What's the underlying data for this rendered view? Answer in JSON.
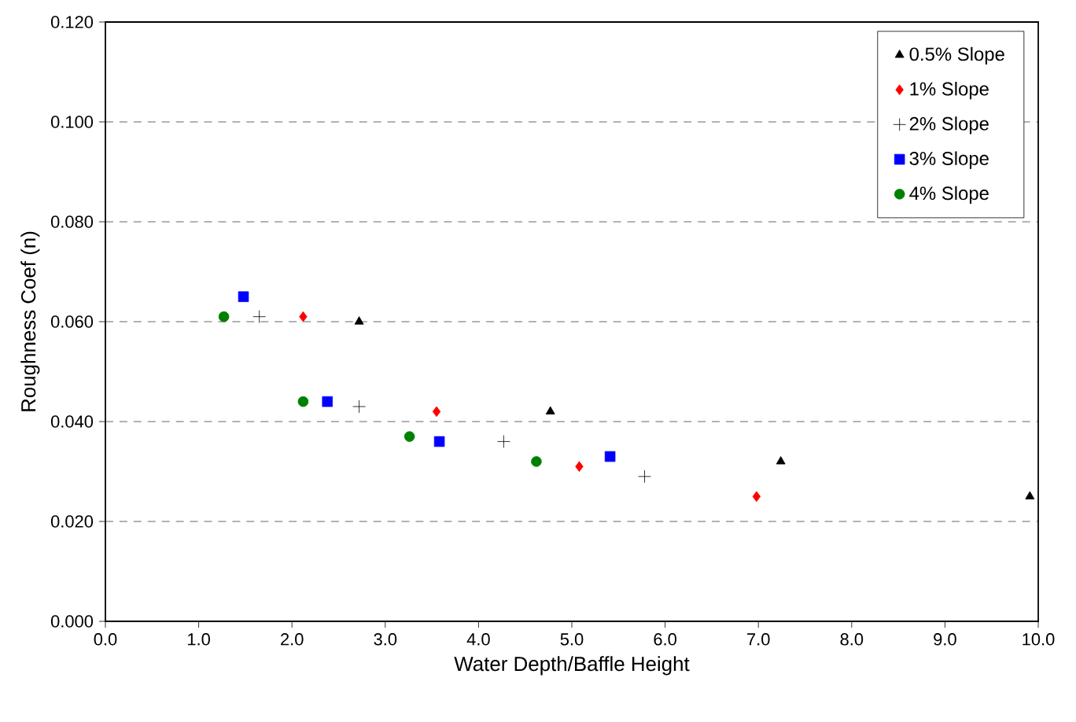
{
  "chart_data": {
    "type": "scatter",
    "xlabel": "Water Depth/Baffle Height",
    "ylabel": "Roughness Coef (n)",
    "xlim": [
      0,
      10
    ],
    "ylim": [
      0,
      0.12
    ],
    "xticks": [
      {
        "value": 0,
        "label": "0.0"
      },
      {
        "value": 1,
        "label": "1.0"
      },
      {
        "value": 2,
        "label": "2.0"
      },
      {
        "value": 3,
        "label": "3.0"
      },
      {
        "value": 4,
        "label": "4.0"
      },
      {
        "value": 5,
        "label": "5.0"
      },
      {
        "value": 6,
        "label": "6.0"
      },
      {
        "value": 7,
        "label": "7.0"
      },
      {
        "value": 8,
        "label": "8.0"
      },
      {
        "value": 9,
        "label": "9.0"
      },
      {
        "value": 10,
        "label": "10.0"
      }
    ],
    "yticks": [
      {
        "value": 0,
        "label": "0.000"
      },
      {
        "value": 0.02,
        "label": "0.020"
      },
      {
        "value": 0.04,
        "label": "0.040"
      },
      {
        "value": 0.06,
        "label": "0.060"
      },
      {
        "value": 0.08,
        "label": "0.080"
      },
      {
        "value": 0.1,
        "label": "0.100"
      },
      {
        "value": 0.12,
        "label": "0.120"
      }
    ],
    "grid": "y",
    "legend": "top right",
    "series": [
      {
        "name": "0.5% Slope",
        "color": "#000000",
        "marker": "triangle",
        "x": [
          2.72,
          4.77,
          7.24,
          9.91
        ],
        "values": [
          0.06,
          0.042,
          0.032,
          0.025
        ]
      },
      {
        "name": "1% Slope",
        "color": "#ff0000",
        "marker": "diamond",
        "x": [
          2.12,
          3.55,
          5.08,
          6.98
        ],
        "values": [
          0.061,
          0.042,
          0.031,
          0.025
        ]
      },
      {
        "name": "2% Slope",
        "color": "#000000",
        "marker": "cross",
        "x": [
          1.65,
          2.72,
          4.27,
          5.78
        ],
        "values": [
          0.061,
          0.043,
          0.036,
          0.029
        ]
      },
      {
        "name": "3% Slope",
        "color": "#0000ff",
        "marker": "square",
        "x": [
          1.48,
          2.38,
          3.58,
          5.41
        ],
        "values": [
          0.065,
          0.044,
          0.036,
          0.033
        ]
      },
      {
        "name": "4% Slope",
        "color": "#008000",
        "marker": "circle",
        "x": [
          1.27,
          2.12,
          3.26,
          4.62
        ],
        "values": [
          0.061,
          0.044,
          0.037,
          0.032
        ]
      }
    ]
  }
}
